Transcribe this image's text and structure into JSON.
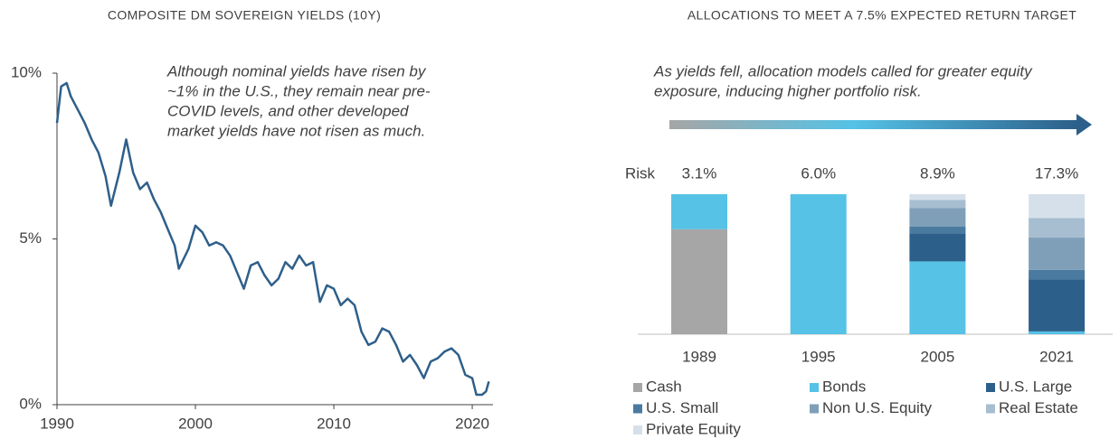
{
  "chart_data": [
    {
      "type": "line",
      "title": "COMPOSITE DM SOVEREIGN YIELDS (10Y)",
      "annotation": [
        "Although nominal yields have risen by",
        "~1% in the U.S., they remain near pre-",
        "COVID levels, and other developed",
        "market yields have not risen as much."
      ],
      "color": "#2e5f8a",
      "x": [
        1990.0,
        1990.3,
        1990.7,
        1991.0,
        1991.5,
        1992.0,
        1992.5,
        1993.0,
        1993.5,
        1993.9,
        1994.5,
        1995.0,
        1995.5,
        1996.0,
        1996.5,
        1997.0,
        1997.5,
        1998.0,
        1998.5,
        1998.8,
        1999.5,
        2000.0,
        2000.5,
        2001.0,
        2001.5,
        2002.0,
        2002.5,
        2003.0,
        2003.5,
        2004.0,
        2004.5,
        2005.0,
        2005.5,
        2006.0,
        2006.5,
        2007.0,
        2007.5,
        2008.0,
        2008.5,
        2009.0,
        2009.5,
        2010.0,
        2010.5,
        2011.0,
        2011.5,
        2012.0,
        2012.5,
        2013.0,
        2013.5,
        2014.0,
        2014.5,
        2015.0,
        2015.5,
        2016.0,
        2016.5,
        2017.0,
        2017.5,
        2018.0,
        2018.5,
        2019.0,
        2019.5,
        2020.0,
        2020.3,
        2020.7,
        2021.0,
        2021.2
      ],
      "values": [
        8.5,
        9.6,
        9.7,
        9.3,
        8.9,
        8.5,
        8.0,
        7.6,
        6.9,
        6.0,
        7.0,
        8.0,
        7.0,
        6.5,
        6.7,
        6.2,
        5.8,
        5.3,
        4.8,
        4.1,
        4.7,
        5.4,
        5.2,
        4.8,
        4.9,
        4.8,
        4.5,
        4.0,
        3.5,
        4.2,
        4.3,
        3.9,
        3.6,
        3.8,
        4.3,
        4.1,
        4.5,
        4.2,
        4.3,
        3.1,
        3.6,
        3.5,
        3.0,
        3.2,
        3.0,
        2.2,
        1.8,
        1.9,
        2.3,
        2.2,
        1.8,
        1.3,
        1.5,
        1.2,
        0.8,
        1.3,
        1.4,
        1.6,
        1.7,
        1.5,
        0.9,
        0.8,
        0.3,
        0.3,
        0.4,
        0.7
      ],
      "xlim": [
        1990,
        2021.5
      ],
      "xticks": [
        1990,
        2000,
        2010,
        2020
      ],
      "ylim": [
        0,
        10
      ],
      "yticks": [
        {
          "value": 0,
          "label": "0%"
        },
        {
          "value": 5,
          "label": "5%"
        },
        {
          "value": 10,
          "label": "10%"
        }
      ]
    },
    {
      "type": "bar",
      "stacked": true,
      "title": "ALLOCATIONS TO MEET A 7.5% EXPECTED RETURN TARGET",
      "subtitle": [
        "As yields fell, allocation models called for greater equity",
        "exposure, inducing higher portfolio risk."
      ],
      "risk": {
        "label": "Risk",
        "values": [
          3.1,
          6.0,
          8.9,
          17.3
        ],
        "value_labels": [
          "3.1%",
          "6.0%",
          "8.9%",
          "17.3%"
        ]
      },
      "categories": [
        "1989",
        "1995",
        "2005",
        "2021"
      ],
      "ylim": [
        0,
        100
      ],
      "series": [
        {
          "name": "Cash",
          "color": "#a6a6a6",
          "values": [
            75,
            0,
            0,
            0
          ]
        },
        {
          "name": "Bonds",
          "color": "#55c2e6",
          "values": [
            25,
            100,
            52,
            2
          ]
        },
        {
          "name": "U.S. Large",
          "color": "#2c5f8a",
          "values": [
            0,
            0,
            20,
            37
          ]
        },
        {
          "name": "U.S. Small",
          "color": "#4a7aa0",
          "values": [
            0,
            0,
            5,
            7
          ]
        },
        {
          "name": "Non U.S. Equity",
          "color": "#7f9fb8",
          "values": [
            0,
            0,
            13,
            23
          ]
        },
        {
          "name": "Real Estate",
          "color": "#a7bdd0",
          "values": [
            0,
            0,
            6,
            14
          ]
        },
        {
          "name": "Private Equity",
          "color": "#d5e0ea",
          "values": [
            0,
            0,
            4,
            17
          ]
        }
      ]
    }
  ]
}
